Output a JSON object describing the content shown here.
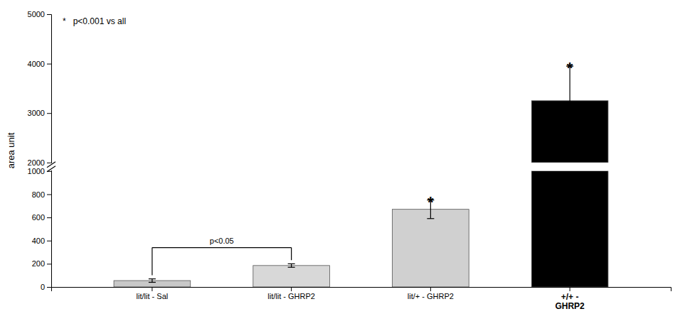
{
  "chart_data": {
    "type": "bar",
    "ylabel": "area unit",
    "categories": [
      "lit/lit - Sal",
      "lit/lit - GHRP2",
      "lit/+ - GHRP2",
      "+/+ -\nGHRP2"
    ],
    "values": [
      55,
      185,
      670,
      3250
    ],
    "errors": [
      15,
      15,
      80,
      700
    ],
    "colors": [
      "#c8c8c8",
      "#d8d8d8",
      "#d0d0d0",
      "#000000"
    ],
    "ylim": [
      0,
      5000
    ],
    "yticks": [
      0,
      200,
      400,
      600,
      800,
      1000,
      2000,
      3000,
      4000,
      5000
    ],
    "grid": false,
    "annotations": [
      {
        "text": "p<0.05",
        "from": "lit/lit - Sal",
        "to": "lit/lit - GHRP2",
        "y": 340
      },
      {
        "text": "*",
        "category": "lit/+ - GHRP2"
      },
      {
        "text": "*",
        "category": "+/+ -\nGHRP2"
      },
      {
        "text": "*   p<0.001 vs all"
      }
    ]
  }
}
